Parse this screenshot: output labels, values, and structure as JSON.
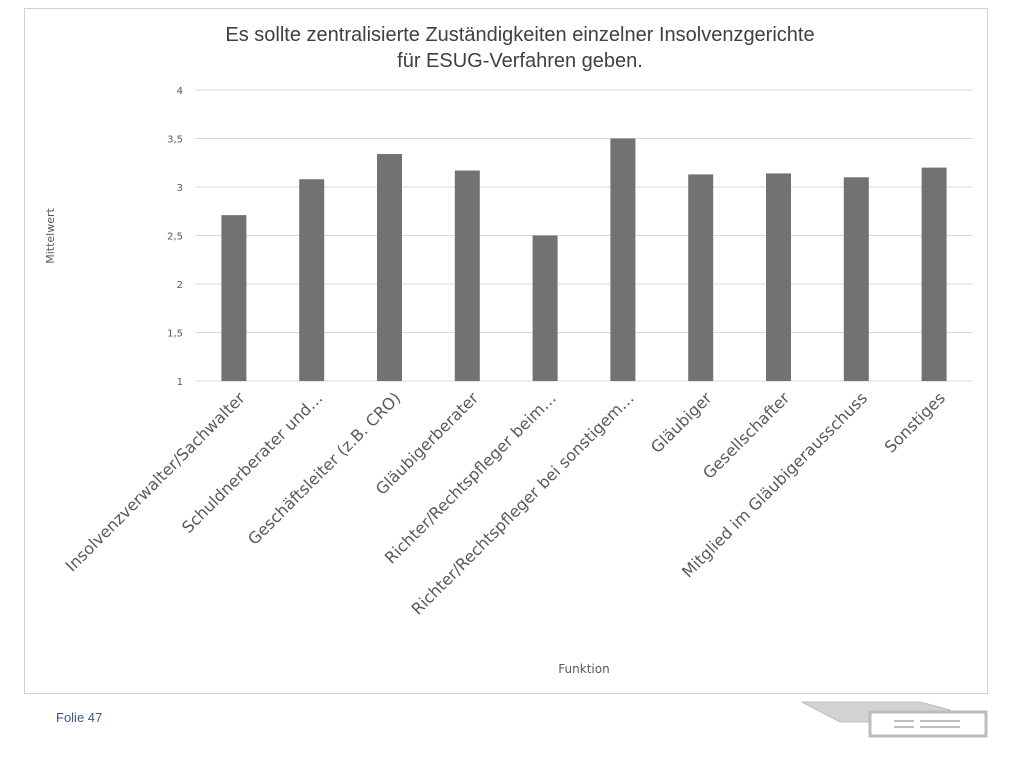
{
  "chart_data": {
    "type": "bar",
    "title_line1": "Es sollte zentralisierte Zuständigkeiten einzelner  Insolvenzgerichte",
    "title_line2": "für ESUG-Verfahren geben.",
    "xlabel": "Funktion",
    "ylabel": "Mittelwert",
    "ylim": [
      1,
      4
    ],
    "yticks": [
      "1",
      "1,5",
      "2",
      "2,5",
      "3",
      "3,5",
      "4"
    ],
    "grid": true,
    "legend": "none",
    "categories": [
      "Insolvenzverwalter/Sachwalter",
      "Schuldnerberater und…",
      "Geschäftsleiter (z.B. CRO)",
      "Gläubigerberater",
      "Richter/Rechtspfleger beim…",
      "Richter/Rechtspfleger bei sonstigem…",
      "Gläubiger",
      "Gesellschafter",
      "Mitglied im Gläubigerausschuss",
      "Sonstiges"
    ],
    "values": [
      2.71,
      3.08,
      3.34,
      3.17,
      2.5,
      3.5,
      3.13,
      3.14,
      3.1,
      3.2
    ],
    "bar_color": "#727272",
    "grid_color": "#d9d9d9"
  },
  "footer": {
    "slide_label": "Folie 47"
  },
  "nav": {
    "icon": "slide-navigation-arrow-icon"
  }
}
